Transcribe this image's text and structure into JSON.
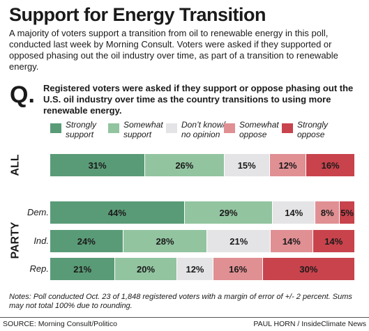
{
  "title": "Support for Energy Transition",
  "intro": "A majority of voters support a transition from oil to renewable energy in this poll, conducted last week by Morning Consult. Voters were asked if they supported or opposed phasing out the oil industry over time, as part of a transition to renewable energy.",
  "question": {
    "letter": "Q.",
    "text": "Registered voters were asked if they support or oppose phasing out the U.S. oil industry over time as the country transitions to using more renewable energy."
  },
  "colors": {
    "strongly_support": "#5a9b77",
    "somewhat_support": "#92c4a0",
    "dont_know": "#e4e4e6",
    "somewhat_oppose": "#e08f93",
    "strongly_oppose": "#c8434c"
  },
  "notes": "Notes: Poll conducted Oct. 23 of 1,848 registered voters with a margin of error of +/- 2 percent. Sums may not total 100% due to rounding.",
  "source": "SOURCE: Morning Consult/Politico",
  "credit": "PAUL HORN / InsideClimate News",
  "chart_data": {
    "type": "bar",
    "orientation": "horizontal-stacked",
    "unit": "%",
    "categories": [
      "Strongly support",
      "Somewhat support",
      "Don't know/ no opinion",
      "Somewhat oppose",
      "Strongly oppose"
    ],
    "legend": [
      {
        "line1": "Strongly",
        "line2": "support",
        "color": "#5a9b77"
      },
      {
        "line1": "Somewhat",
        "line2": "support",
        "color": "#92c4a0"
      },
      {
        "line1": "Don’t know/",
        "line2": "no opinion",
        "color": "#e4e4e6"
      },
      {
        "line1": "Somewhat",
        "line2": "oppose",
        "color": "#e08f93"
      },
      {
        "line1": "Strongly",
        "line2": "oppose",
        "color": "#c8434c"
      }
    ],
    "groups": [
      {
        "label": "ALL",
        "rows": [
          {
            "label": "",
            "values": [
              31,
              26,
              15,
              12,
              16
            ]
          }
        ]
      },
      {
        "label": "PARTY",
        "rows": [
          {
            "label": "Dem.",
            "values": [
              44,
              29,
              14,
              8,
              5
            ]
          },
          {
            "label": "Ind.",
            "values": [
              24,
              28,
              21,
              14,
              14
            ]
          },
          {
            "label": "Rep.",
            "values": [
              21,
              20,
              12,
              16,
              30
            ]
          }
        ]
      }
    ]
  }
}
